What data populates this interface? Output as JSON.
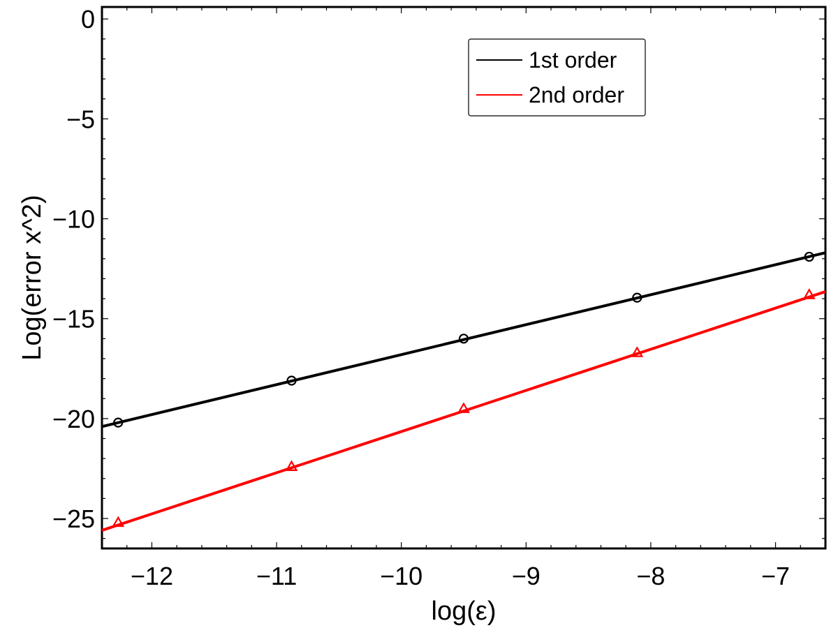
{
  "chart_data": {
    "type": "line",
    "title": "",
    "xlabel": "log(ε)",
    "ylabel": "Log(error x^2)",
    "xlim": [
      -12.4,
      -6.6
    ],
    "ylim": [
      -26.5,
      0.6
    ],
    "xticks": [
      -12,
      -11,
      -10,
      -9,
      -8,
      -7
    ],
    "yticks": [
      0,
      -5,
      -10,
      -15,
      -20,
      -25
    ],
    "grid": false,
    "legend_position": "top-right",
    "series": [
      {
        "name": "1st order",
        "color": "#000000",
        "marker": "circle",
        "x": [
          -12.27,
          -10.88,
          -9.5,
          -8.11,
          -6.73
        ],
        "y": [
          -20.2,
          -18.1,
          -16.0,
          -13.95,
          -11.9
        ],
        "fit": {
          "slope": 1.5,
          "intercept": -1.8
        }
      },
      {
        "name": "2nd order",
        "color": "#ff0000",
        "marker": "triangle",
        "x": [
          -12.27,
          -10.88,
          -9.5,
          -8.11,
          -6.73
        ],
        "y": [
          -25.2,
          -22.4,
          -19.5,
          -16.7,
          -13.8
        ],
        "fit": {
          "slope": 2.06,
          "intercept": -0.05
        }
      }
    ]
  }
}
